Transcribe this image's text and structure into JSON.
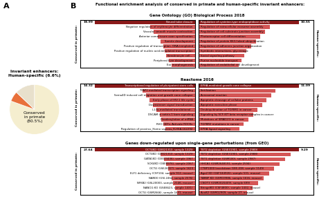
{
  "title": "Functional enrichment analysis of conserved in primate and human-specific invariant enhancers:",
  "annotations": [
    "A",
    "B"
  ],
  "chart_data": [
    {
      "type": "pie",
      "title": "Invariant enhancers:\nHuman-specific (6.6%)",
      "values": [
        80.5,
        6.6,
        12.9
      ],
      "colors": [
        "#f5eecf",
        "#e8703a",
        "#e8e0cc"
      ],
      "annotations": [
        "Conserved\nin primate\n(80.5%)"
      ]
    },
    {
      "type": "bar",
      "orientation": "horizontal",
      "title": "Gene Ontology (GO) Biological Process 2018",
      "ylabel": "Conserved in primate:",
      "categories": [
        "Neural tube closure",
        "Negative regulation of erythrocyte differentiation",
        "Vascular smooth muscle contraction",
        "Anterior commissure axon specification",
        "Somite development",
        "Positive regulation of transcription, DNA-templated",
        "Positive regulation of nucleic acid-templated transcription",
        "Keratinocyte cell...",
        "Peripheral liver development",
        "Ear morphogenesis"
      ],
      "values": [
        18.99,
        8.5,
        7.8,
        7.0,
        6.5,
        6.0,
        5.8,
        5.5,
        5.0,
        4.5
      ],
      "value_labels": [
        "18.99",
        null,
        null,
        null,
        null,
        null,
        null,
        null,
        null,
        null
      ],
      "colors": [
        "#8b1a1a",
        "#d45555",
        "#d45555",
        "#d45555",
        "#d45555",
        "#d45555",
        "#d45555",
        "#d45555",
        "#d45555",
        "#d45555"
      ],
      "xlim": [
        21.6486,
        0
      ],
      "tick_labels": false
    },
    {
      "type": "bar",
      "orientation": "horizontal",
      "ylabel": "Human-specific:",
      "categories": [
        "Regulation of cysteine-type endopeptidase activity",
        "Regulation of extracellular exosome assembly",
        "Regulation of cell-substrate junction assembly",
        "Photoreceptor cell differentiation",
        "Regulation of protein K63-linked ubiquitination",
        "Regulation of adherens junction organization",
        "Symbiotic interactions, glycereagic",
        "Social signaling pathway",
        "Purine nucleotide transport",
        "Regulation of endothelial cell development"
      ],
      "values": [
        10.55,
        7.5,
        7.0,
        6.5,
        6.0,
        5.5,
        5.0,
        4.8,
        4.5,
        4.2
      ],
      "value_labels": [
        "10.55",
        null,
        null,
        null,
        null,
        null,
        null,
        null,
        null,
        null
      ],
      "colors": [
        "#8b1a1a",
        "#d45555",
        "#d45555",
        "#d45555",
        "#d45555",
        "#d45555",
        "#d45555",
        "#d45555",
        "#d45555",
        "#d45555"
      ],
      "xlim": [
        0,
        12.027
      ],
      "tick_labels": false
    },
    {
      "type": "bar",
      "orientation": "horizontal",
      "title": "Reactome 2016",
      "ylabel": "Conserved in primate:",
      "categories": [
        "Transcriptional regulation of pluripotent stem cells",
        "TFAP2 mediated transcription signaling",
        "Sema4D induced cell migration and growth cone collapse",
        "Early phase of HIV-1 life cycle",
        "Downstream signal transduction",
        "L13a-mediated translational...",
        "DSCAM in netrin-1 born signaling",
        "Deadenylation of mRNA",
        "RHO GEFs, Activate ROCKs",
        "Regulation of provirus_Homo sapiens_R-HSA-162292"
      ],
      "values": [
        14.32,
        7.5,
        7.0,
        6.5,
        6.0,
        5.5,
        5.0,
        4.8,
        4.5,
        4.2
      ],
      "value_labels": [
        "14.32",
        null,
        null,
        null,
        null,
        null,
        null,
        null,
        null,
        null
      ],
      "colors": [
        "#8b1a1a",
        "#d45555",
        "#d45555",
        "#d45555",
        "#d45555",
        "#d45555",
        "#d45555",
        "#d45555",
        "#d45555",
        "#d45555"
      ],
      "xlim": [
        16.3248,
        0
      ],
      "tick_labels": false
    },
    {
      "type": "bar",
      "orientation": "horizontal",
      "ylabel": "Human-specific:",
      "categories": [
        "EPHA-mediated growth cone collapse",
        "Fertilization",
        "Acrosomal reaction",
        "Apoptotic cleavage of cellular proteins",
        "Apoptotic execution phase",
        "Deubiquitination of TGFBR1 in cancer",
        "Signaling by SCF-KIT beta receptor complex in cancer",
        "Mutations of SMAD2/3 in cancer",
        "TGFBR2 mutations in cancer",
        "EPHA ligand signaling"
      ],
      "values": [
        11.09,
        8.5,
        8.0,
        7.5,
        7.0,
        6.5,
        6.0,
        5.5,
        5.0,
        4.5
      ],
      "value_labels": [
        "11.09",
        null,
        null,
        null,
        null,
        null,
        null,
        null,
        null,
        null
      ],
      "colors": [
        "#8b1a1a",
        "#d45555",
        "#d45555",
        "#d45555",
        "#d45555",
        "#d45555",
        "#d45555",
        "#d45555",
        "#d45555",
        "#d45555"
      ],
      "xlim": [
        0,
        12.6426
      ],
      "tick_labels": false
    },
    {
      "type": "bar",
      "orientation": "horizontal",
      "title": "Genes down-regulated upon single-gene perturbations (from GEO)",
      "ylabel": "Conserved in primate:",
      "categories": [
        "OCT4KO (GSE21310, sample 1329)",
        "OCT4KO (GSE21310, sample 1329)",
        "GATA1KO (GSE43436), sample 1967",
        "SOX4KO (GSE8976), sample 2067",
        "OCT4 (GSE26557), sample 1623",
        "ELF1 deficiency (CSF104, sample 912, mouse)",
        "NARD0 (GSI-2464, sample 2576)",
        "NFKB2 (GSL20003, sample 2146, mouse)",
        "NANOG KO (GSE8623, sample 1431)",
        "OCT4 (GSM2666), sample 1631, mouse)"
      ],
      "values": [
        27.64,
        9.5,
        8.5,
        8.0,
        7.5,
        7.0,
        6.5,
        6.0,
        5.5,
        5.0
      ],
      "value_labels": [
        "27.64",
        null,
        null,
        null,
        null,
        null,
        null,
        null,
        null,
        null
      ],
      "colors": [
        "#8b1a1a",
        "#d45555",
        "#d45555",
        "#d45555",
        "#d45555",
        "#d45555",
        "#d45555",
        "#d45555",
        "#d45555",
        "#d45555"
      ],
      "xlim": [
        31.5096,
        0
      ],
      "tick_labels": false
    },
    {
      "type": "bar",
      "orientation": "horizontal",
      "ylabel": "Human-specific:",
      "categories": [
        "TET2 depletion (GSE31901, sample 2989)",
        "TET2 depletion (GSE31901, sample 2988)",
        "TET1 depletion (GSM100), sample 2987)",
        "HHCA1 (GSM2648191, sample 2594)",
        "CTBP1000 knockdown GSE-438, sample 1149)",
        "Ago2 KD (GSF184926), sample 531, mouse)",
        "TARBP KD (GSM19986, sample 1616, mouse)",
        "CNOT3 (GSM2020409), sample 699)",
        "BringelKO (CSF4800), sample 1432, mouse)",
        "Aco82 (GSM12909, sample 27, mouse)"
      ],
      "values": [
        9.29,
        8.5,
        8.0,
        7.5,
        7.0,
        6.5,
        6.0,
        5.5,
        5.0,
        4.5
      ],
      "value_labels": [
        "9.29",
        null,
        null,
        null,
        null,
        null,
        null,
        null,
        null,
        null
      ],
      "colors": [
        "#8b1a1a",
        "#d45555",
        "#d45555",
        "#d45555",
        "#d45555",
        "#d45555",
        "#d45555",
        "#d45555",
        "#d45555",
        "#d45555"
      ],
      "xlim": [
        0,
        10.5906
      ],
      "tick_labels": false
    }
  ]
}
